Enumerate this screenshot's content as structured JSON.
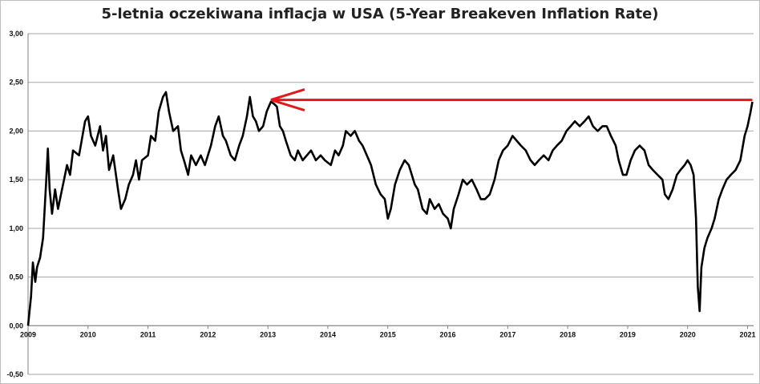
{
  "chart_data": {
    "type": "line",
    "title": "5-letnia oczekiwana inflacja w USA (5-Year Breakeven Inflation Rate)",
    "xlabel": "",
    "ylabel": "",
    "ylim": [
      -0.5,
      3.0
    ],
    "xlim": [
      2009.0,
      2021.1
    ],
    "grid": true,
    "y_ticks": [
      "3,00",
      "2,50",
      "2,00",
      "1,50",
      "1,00",
      "0,50",
      "0,00",
      "-0,50"
    ],
    "y_tick_values": [
      3.0,
      2.5,
      2.0,
      1.5,
      1.0,
      0.5,
      0.0,
      -0.5
    ],
    "x_ticks": [
      "2009",
      "2010",
      "2011",
      "2012",
      "2013",
      "2014",
      "2015",
      "2016",
      "2017",
      "2018",
      "2019",
      "2020",
      "2021"
    ],
    "x_tick_values": [
      2009,
      2010,
      2011,
      2012,
      2013,
      2014,
      2015,
      2016,
      2017,
      2018,
      2019,
      2020,
      2021
    ],
    "series": [
      {
        "color": "#000000",
        "points": [
          [
            2009.0,
            0.0
          ],
          [
            2009.05,
            0.3
          ],
          [
            2009.08,
            0.65
          ],
          [
            2009.12,
            0.45
          ],
          [
            2009.15,
            0.6
          ],
          [
            2009.2,
            0.7
          ],
          [
            2009.25,
            0.9
          ],
          [
            2009.3,
            1.45
          ],
          [
            2009.33,
            1.82
          ],
          [
            2009.36,
            1.4
          ],
          [
            2009.4,
            1.15
          ],
          [
            2009.45,
            1.4
          ],
          [
            2009.5,
            1.2
          ],
          [
            2009.55,
            1.35
          ],
          [
            2009.6,
            1.5
          ],
          [
            2009.65,
            1.65
          ],
          [
            2009.7,
            1.55
          ],
          [
            2009.75,
            1.8
          ],
          [
            2009.85,
            1.75
          ],
          [
            2009.95,
            2.1
          ],
          [
            2010.0,
            2.15
          ],
          [
            2010.05,
            1.95
          ],
          [
            2010.12,
            1.85
          ],
          [
            2010.2,
            2.05
          ],
          [
            2010.25,
            1.8
          ],
          [
            2010.3,
            1.95
          ],
          [
            2010.35,
            1.6
          ],
          [
            2010.42,
            1.75
          ],
          [
            2010.5,
            1.4
          ],
          [
            2010.55,
            1.2
          ],
          [
            2010.62,
            1.3
          ],
          [
            2010.68,
            1.45
          ],
          [
            2010.75,
            1.55
          ],
          [
            2010.8,
            1.7
          ],
          [
            2010.85,
            1.5
          ],
          [
            2010.9,
            1.7
          ],
          [
            2011.0,
            1.75
          ],
          [
            2011.05,
            1.95
          ],
          [
            2011.12,
            1.9
          ],
          [
            2011.18,
            2.2
          ],
          [
            2011.25,
            2.35
          ],
          [
            2011.3,
            2.4
          ],
          [
            2011.35,
            2.2
          ],
          [
            2011.42,
            2.0
          ],
          [
            2011.5,
            2.05
          ],
          [
            2011.55,
            1.8
          ],
          [
            2011.6,
            1.7
          ],
          [
            2011.67,
            1.55
          ],
          [
            2011.72,
            1.75
          ],
          [
            2011.8,
            1.65
          ],
          [
            2011.88,
            1.75
          ],
          [
            2011.95,
            1.65
          ],
          [
            2012.05,
            1.85
          ],
          [
            2012.12,
            2.05
          ],
          [
            2012.18,
            2.15
          ],
          [
            2012.25,
            1.95
          ],
          [
            2012.3,
            1.9
          ],
          [
            2012.38,
            1.75
          ],
          [
            2012.45,
            1.7
          ],
          [
            2012.52,
            1.85
          ],
          [
            2012.58,
            1.95
          ],
          [
            2012.65,
            2.15
          ],
          [
            2012.7,
            2.35
          ],
          [
            2012.75,
            2.15
          ],
          [
            2012.8,
            2.1
          ],
          [
            2012.85,
            2.0
          ],
          [
            2012.92,
            2.05
          ],
          [
            2012.98,
            2.2
          ],
          [
            2013.05,
            2.3
          ],
          [
            2013.1,
            2.28
          ],
          [
            2013.15,
            2.25
          ],
          [
            2013.2,
            2.05
          ],
          [
            2013.25,
            2.0
          ],
          [
            2013.3,
            1.9
          ],
          [
            2013.38,
            1.75
          ],
          [
            2013.45,
            1.7
          ],
          [
            2013.5,
            1.8
          ],
          [
            2013.58,
            1.7
          ],
          [
            2013.65,
            1.75
          ],
          [
            2013.72,
            1.8
          ],
          [
            2013.8,
            1.7
          ],
          [
            2013.88,
            1.75
          ],
          [
            2013.95,
            1.7
          ],
          [
            2014.05,
            1.65
          ],
          [
            2014.12,
            1.8
          ],
          [
            2014.18,
            1.75
          ],
          [
            2014.25,
            1.85
          ],
          [
            2014.3,
            2.0
          ],
          [
            2014.38,
            1.95
          ],
          [
            2014.45,
            2.0
          ],
          [
            2014.52,
            1.9
          ],
          [
            2014.58,
            1.85
          ],
          [
            2014.65,
            1.75
          ],
          [
            2014.72,
            1.65
          ],
          [
            2014.8,
            1.45
          ],
          [
            2014.88,
            1.35
          ],
          [
            2014.95,
            1.3
          ],
          [
            2015.0,
            1.1
          ],
          [
            2015.05,
            1.2
          ],
          [
            2015.12,
            1.45
          ],
          [
            2015.2,
            1.6
          ],
          [
            2015.28,
            1.7
          ],
          [
            2015.35,
            1.65
          ],
          [
            2015.4,
            1.55
          ],
          [
            2015.45,
            1.45
          ],
          [
            2015.5,
            1.4
          ],
          [
            2015.58,
            1.2
          ],
          [
            2015.65,
            1.15
          ],
          [
            2015.7,
            1.3
          ],
          [
            2015.78,
            1.2
          ],
          [
            2015.85,
            1.25
          ],
          [
            2015.92,
            1.15
          ],
          [
            2016.0,
            1.1
          ],
          [
            2016.05,
            1.0
          ],
          [
            2016.1,
            1.2
          ],
          [
            2016.18,
            1.35
          ],
          [
            2016.25,
            1.5
          ],
          [
            2016.32,
            1.45
          ],
          [
            2016.4,
            1.5
          ],
          [
            2016.48,
            1.4
          ],
          [
            2016.55,
            1.3
          ],
          [
            2016.62,
            1.3
          ],
          [
            2016.7,
            1.35
          ],
          [
            2016.78,
            1.5
          ],
          [
            2016.85,
            1.7
          ],
          [
            2016.92,
            1.8
          ],
          [
            2017.0,
            1.85
          ],
          [
            2017.08,
            1.95
          ],
          [
            2017.15,
            1.9
          ],
          [
            2017.22,
            1.85
          ],
          [
            2017.3,
            1.8
          ],
          [
            2017.38,
            1.7
          ],
          [
            2017.45,
            1.65
          ],
          [
            2017.52,
            1.7
          ],
          [
            2017.6,
            1.75
          ],
          [
            2017.68,
            1.7
          ],
          [
            2017.75,
            1.8
          ],
          [
            2017.82,
            1.85
          ],
          [
            2017.9,
            1.9
          ],
          [
            2017.98,
            2.0
          ],
          [
            2018.05,
            2.05
          ],
          [
            2018.12,
            2.1
          ],
          [
            2018.2,
            2.05
          ],
          [
            2018.28,
            2.1
          ],
          [
            2018.35,
            2.15
          ],
          [
            2018.42,
            2.05
          ],
          [
            2018.5,
            2.0
          ],
          [
            2018.58,
            2.05
          ],
          [
            2018.65,
            2.05
          ],
          [
            2018.72,
            1.95
          ],
          [
            2018.8,
            1.85
          ],
          [
            2018.85,
            1.7
          ],
          [
            2018.92,
            1.55
          ],
          [
            2018.98,
            1.55
          ],
          [
            2019.05,
            1.7
          ],
          [
            2019.12,
            1.8
          ],
          [
            2019.2,
            1.85
          ],
          [
            2019.28,
            1.8
          ],
          [
            2019.35,
            1.65
          ],
          [
            2019.42,
            1.6
          ],
          [
            2019.5,
            1.55
          ],
          [
            2019.58,
            1.5
          ],
          [
            2019.62,
            1.35
          ],
          [
            2019.68,
            1.3
          ],
          [
            2019.75,
            1.4
          ],
          [
            2019.82,
            1.55
          ],
          [
            2019.88,
            1.6
          ],
          [
            2019.95,
            1.65
          ],
          [
            2020.0,
            1.7
          ],
          [
            2020.05,
            1.65
          ],
          [
            2020.1,
            1.55
          ],
          [
            2020.14,
            1.1
          ],
          [
            2020.17,
            0.4
          ],
          [
            2020.2,
            0.15
          ],
          [
            2020.23,
            0.6
          ],
          [
            2020.28,
            0.8
          ],
          [
            2020.33,
            0.9
          ],
          [
            2020.4,
            1.0
          ],
          [
            2020.45,
            1.1
          ],
          [
            2020.52,
            1.3
          ],
          [
            2020.58,
            1.4
          ],
          [
            2020.65,
            1.5
          ],
          [
            2020.72,
            1.55
          ],
          [
            2020.8,
            1.6
          ],
          [
            2020.88,
            1.7
          ],
          [
            2020.95,
            1.95
          ],
          [
            2021.0,
            2.05
          ],
          [
            2021.05,
            2.2
          ],
          [
            2021.08,
            2.3
          ]
        ]
      }
    ],
    "annotation": {
      "type": "arrow",
      "color": "#e0191b",
      "from": [
        2021.08,
        2.32
      ],
      "to": [
        2013.05,
        2.32
      ]
    }
  }
}
